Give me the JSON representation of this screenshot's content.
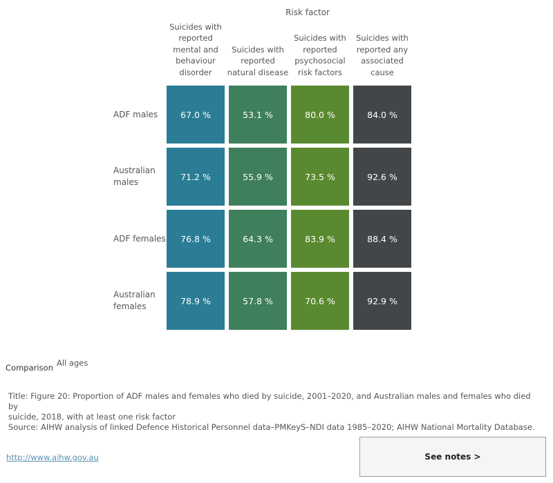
{
  "chart_data": {
    "type": "heatmap",
    "column_axis_title": "Risk factor",
    "columns": [
      "Suicides with reported mental and behaviour disorder",
      "Suicides with reported natural disease",
      "Suicides with reported psychosocial risk factors",
      "Suicides with reported any associated cause"
    ],
    "column_header_lines": [
      [
        "Suicides with",
        "reported",
        "mental and",
        "behaviour",
        "disorder"
      ],
      [
        "Suicides with",
        "reported",
        "natural disease"
      ],
      [
        "Suicides with",
        "reported",
        "psychosocial",
        "risk factors"
      ],
      [
        "Suicides with",
        "reported any",
        "associated",
        "cause"
      ]
    ],
    "rows": [
      "ADF males",
      "Australian males",
      "ADF females",
      "Australian females"
    ],
    "row_label_lines": [
      [
        "ADF males"
      ],
      [
        "Australian",
        "males"
      ],
      [
        "ADF females"
      ],
      [
        "Australian",
        "females"
      ]
    ],
    "values": [
      [
        67.0,
        53.1,
        80.0,
        84.0
      ],
      [
        71.2,
        55.9,
        73.5,
        92.6
      ],
      [
        76.8,
        64.3,
        83.9,
        88.4
      ],
      [
        78.9,
        57.8,
        70.6,
        92.9
      ]
    ],
    "value_suffix": " %",
    "column_colors": [
      "#2a7d94",
      "#3f7f5c",
      "#5a8a2f",
      "#434649"
    ]
  },
  "filter": {
    "label": "Comparison",
    "value": "All ages"
  },
  "caption": {
    "title_line1": "Title: Figure 20: Proportion of ADF males and females who died by suicide, 2001–2020, and Australian males and females who died by",
    "title_line2": "suicide, 2018, with at least one risk factor",
    "source": "Source: AIHW analysis of linked Defence Historical Personnel data–PMKeyS–NDI data 1985–2020; AIHW National Mortality Database."
  },
  "footer": {
    "link_text": "http://www.aihw.gov.au",
    "notes_button": "See notes >"
  }
}
